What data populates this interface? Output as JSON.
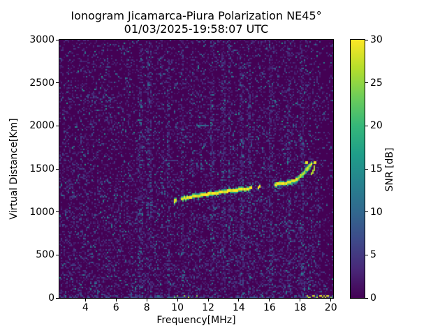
{
  "chart_data": {
    "type": "heatmap",
    "title": "Ionogram Jicamarca-Piura Polarization NE45°",
    "subtitle": "01/03/2025-19:58:07 UTC",
    "xlabel": "Frequency[MHz]",
    "ylabel": "Virtual Distance[Km]",
    "colorbar_label": "SNR [dB]",
    "colormap": "viridis",
    "xlim": [
      2.3,
      20.15
    ],
    "ylim": [
      0,
      3000
    ],
    "clim": [
      0,
      30
    ],
    "x_ticks": [
      4,
      6,
      8,
      10,
      12,
      14,
      16,
      18,
      20
    ],
    "y_ticks": [
      0,
      500,
      1000,
      1500,
      2000,
      2500,
      3000
    ],
    "colorbar_ticks": [
      0,
      5,
      10,
      15,
      20,
      25,
      30
    ],
    "background_snr_db": 0,
    "noise_seed": 42,
    "series": [
      {
        "name": "f-layer-main-trace",
        "snr_db": 30,
        "points": [
          [
            9.8,
            1118
          ],
          [
            10.3,
            1143
          ],
          [
            10.9,
            1166
          ],
          [
            11.5,
            1185
          ],
          [
            12.1,
            1202
          ],
          [
            12.7,
            1218
          ],
          [
            13.3,
            1234
          ],
          [
            13.9,
            1249
          ],
          [
            14.5,
            1262
          ],
          [
            15.1,
            1276
          ],
          [
            15.7,
            1291
          ],
          [
            16.3,
            1307
          ],
          [
            16.9,
            1321
          ],
          [
            17.2,
            1329
          ],
          [
            17.45,
            1340
          ],
          [
            17.65,
            1356
          ],
          [
            17.85,
            1378
          ],
          [
            18.0,
            1400
          ],
          [
            18.15,
            1425
          ],
          [
            18.3,
            1452
          ],
          [
            18.45,
            1482
          ],
          [
            18.6,
            1515
          ],
          [
            18.75,
            1548
          ]
        ]
      },
      {
        "name": "f-layer-split-branch",
        "snr_db": 27,
        "points": [
          [
            17.9,
            1390
          ],
          [
            18.05,
            1415
          ],
          [
            18.2,
            1445
          ],
          [
            18.35,
            1475
          ],
          [
            18.5,
            1505
          ],
          [
            18.62,
            1530
          ]
        ]
      },
      {
        "name": "spread-f-dashes",
        "snr_db": 26,
        "points": [
          [
            18.72,
            1438
          ],
          [
            18.82,
            1468
          ],
          [
            18.92,
            1500
          ],
          [
            19.0,
            1528
          ]
        ]
      },
      {
        "name": "spread-f-dots",
        "snr_db": 30,
        "points": [
          [
            18.5,
            1572
          ],
          [
            18.98,
            1562
          ]
        ]
      },
      {
        "name": "second-hop-echo",
        "snr_db": 10,
        "points": [
          [
            11.35,
            1985
          ],
          [
            12.35,
            2005
          ]
        ]
      },
      {
        "name": "interference-band",
        "snr_db": 8,
        "points": [
          [
            2.35,
            2310
          ],
          [
            5.8,
            2310
          ]
        ]
      }
    ],
    "ground_clutter": {
      "alt_range_km": [
        0,
        25
      ],
      "yellow_freq_ranges_mhz": [
        [
          9.3,
          11.6
        ],
        [
          18.3,
          20.1
        ]
      ]
    },
    "rfi_stripe_freqs_mhz": [
      7.6,
      8.2,
      9.4,
      10.3,
      12.3,
      13.0,
      13.4,
      14.2,
      14.7,
      16.1,
      17.3,
      18.1
    ]
  },
  "colors": {
    "background": "#ffffff",
    "axes_text": "#000000",
    "heatmap_floor": "#440154",
    "trace_peak": "#fde725",
    "viridis_stops": [
      "#440154",
      "#482878",
      "#3e4989",
      "#31688e",
      "#26828e",
      "#1f9e89",
      "#35b779",
      "#6dcd59",
      "#b4de2c",
      "#fde725"
    ]
  }
}
